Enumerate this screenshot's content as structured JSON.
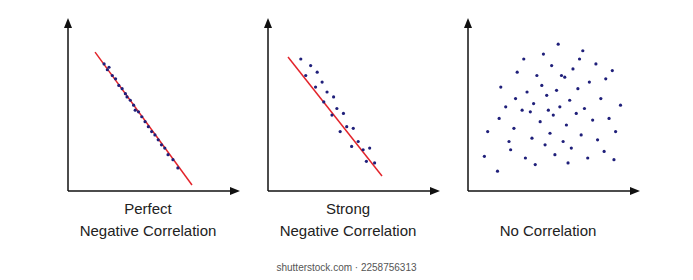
{
  "chart_data": [
    {
      "type": "scatter",
      "title": "Perfect\nNegative Correlation",
      "xlim": [
        0,
        10
      ],
      "ylim": [
        0,
        10
      ],
      "tick_labels": false,
      "series": [
        {
          "type": "scatter",
          "color": "#1f1f7a",
          "x": [
            2.2,
            2.4,
            2.5,
            2.7,
            2.9,
            3.1,
            3.3,
            3.5,
            3.6,
            3.8,
            4.0,
            4.1,
            4.3,
            4.5,
            4.7,
            4.9,
            5.1,
            5.3,
            5.5,
            5.7,
            5.9,
            6.1,
            6.4,
            6.7
          ],
          "values": [
            7.7,
            7.35,
            7.5,
            7.0,
            6.8,
            6.4,
            6.2,
            5.9,
            5.7,
            5.5,
            5.2,
            4.9,
            4.8,
            4.5,
            4.2,
            3.9,
            3.6,
            3.4,
            3.1,
            2.8,
            2.6,
            2.2,
            1.9,
            1.4
          ]
        },
        {
          "type": "line",
          "color": "#e3242b",
          "x": [
            1.65,
            7.56
          ],
          "values": [
            8.42,
            0.36
          ]
        }
      ]
    },
    {
      "type": "scatter",
      "title": "Strong\nNegative Correlation",
      "xlim": [
        0,
        10
      ],
      "ylim": [
        0,
        10
      ],
      "tick_labels": false,
      "series": [
        {
          "type": "scatter",
          "color": "#1f1f7a",
          "x": [
            2.0,
            2.6,
            2.3,
            3.0,
            2.9,
            3.3,
            3.6,
            3.4,
            4.0,
            4.2,
            3.9,
            4.6,
            4.8,
            4.4,
            5.2,
            5.5,
            5.1,
            5.8,
            6.2,
            6.0,
            6.5
          ],
          "values": [
            8.0,
            7.6,
            7.0,
            7.2,
            6.3,
            6.6,
            6.0,
            5.4,
            5.7,
            5.0,
            4.6,
            4.7,
            3.9,
            3.6,
            3.8,
            3.0,
            2.7,
            2.5,
            2.6,
            1.8,
            1.7
          ]
        },
        {
          "type": "line",
          "color": "#e3242b",
          "x": [
            1.22,
            6.95
          ],
          "values": [
            8.12,
            0.91
          ]
        }
      ]
    },
    {
      "type": "scatter",
      "title": "No Correlation",
      "xlim": [
        0,
        10
      ],
      "ylim": [
        0,
        10
      ],
      "tick_labels": false,
      "series": [
        {
          "type": "scatter",
          "color": "#1f1f7a",
          "x": [
            1.2,
            1.0,
            1.8,
            1.9,
            2.3,
            2.0,
            2.6,
            2.8,
            3.0,
            2.9,
            3.3,
            3.5,
            3.6,
            3.4,
            3.9,
            4.0,
            4.2,
            4.1,
            4.4,
            4.5,
            4.7,
            4.8,
            4.6,
            5.0,
            5.1,
            5.2,
            5.3,
            5.4,
            5.6,
            5.5,
            5.8,
            5.9,
            6.0,
            6.1,
            6.2,
            6.4,
            6.3,
            6.6,
            6.7,
            6.9,
            7.0,
            7.1,
            7.3,
            7.4,
            7.6,
            7.8,
            7.9,
            8.1,
            8.3,
            8.4,
            8.6,
            8.8,
            9.0,
            9.3,
            8.9,
            6.8,
            5.7,
            3.8,
            2.5,
            4.9
          ],
          "values": [
            3.6,
            2.1,
            1.2,
            4.4,
            5.1,
            6.3,
            2.5,
            3.8,
            7.2,
            5.6,
            4.9,
            2.0,
            6.0,
            8.0,
            3.2,
            5.3,
            7.0,
            1.6,
            4.2,
            6.4,
            2.8,
            5.8,
            8.3,
            3.5,
            7.6,
            4.6,
            2.2,
            6.1,
            5.1,
            8.9,
            3.0,
            6.9,
            4.0,
            1.7,
            5.5,
            7.4,
            2.6,
            4.7,
            6.2,
            3.4,
            8.5,
            5.0,
            2.0,
            6.6,
            4.3,
            7.7,
            3.1,
            5.6,
            2.4,
            6.8,
            4.4,
            7.3,
            3.6,
            5.2,
            1.9,
            8.0,
            7.0,
            4.8,
            3.0,
            4.9
          ]
        }
      ]
    }
  ],
  "footer": "shutterstock.com · 2258756313"
}
